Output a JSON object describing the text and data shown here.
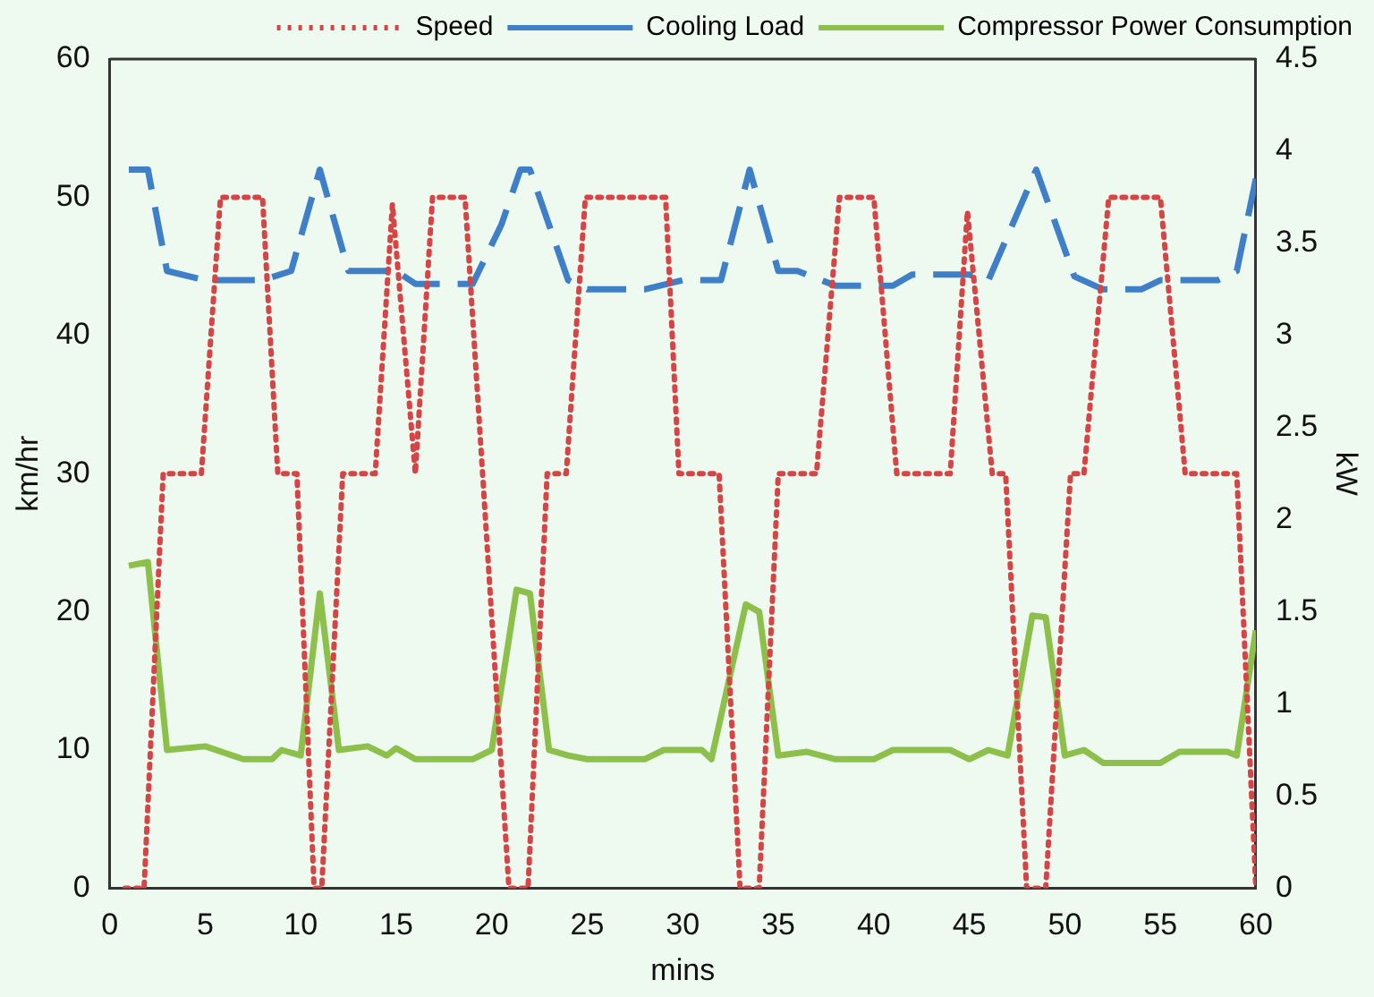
{
  "chart_data": {
    "type": "line",
    "xlabel": "mins",
    "ylabel": "km/hr",
    "y2label": "kW",
    "xlim": [
      0,
      60
    ],
    "xticks": [
      0,
      5,
      10,
      15,
      20,
      25,
      30,
      35,
      40,
      45,
      50,
      55,
      60
    ],
    "ylim": [
      0,
      60
    ],
    "yticks": [
      0,
      10,
      20,
      30,
      40,
      50,
      60
    ],
    "y2lim": [
      0,
      4.5
    ],
    "y2ticks": [
      0,
      0.5,
      1,
      1.5,
      2,
      2.5,
      3,
      3.5,
      4,
      4.5
    ],
    "grid": false,
    "legend": "top",
    "marker": "none",
    "series": [
      {
        "name": "Speed",
        "color": "#d64545",
        "line_style": "dotted",
        "axis": "y",
        "x": [
          0.8,
          1.8,
          2.8,
          4.8,
          5.8,
          8.0,
          8.8,
          9.8,
          10.7,
          11.1,
          12.2,
          13.9,
          14.8,
          16.0,
          16.9,
          18.6,
          20.9,
          21.9,
          22.9,
          23.9,
          24.9,
          29.1,
          29.8,
          30.5,
          31.9,
          33.0,
          34.0,
          35.0,
          37.0,
          38.2,
          40.0,
          41.2,
          44.0,
          44.9,
          46.2,
          46.9,
          48.0,
          49.0,
          50.3,
          51.0,
          52.3,
          55.0,
          56.3,
          59.0,
          60.0
        ],
        "values": [
          0,
          0,
          30,
          30,
          50,
          50,
          30,
          30,
          0,
          0,
          30,
          30,
          49.5,
          30,
          50,
          50,
          0,
          0,
          30,
          30,
          50,
          50,
          30,
          30,
          30,
          0,
          0,
          30,
          30,
          50,
          50,
          30,
          30,
          49,
          30,
          30,
          0,
          0,
          30,
          30,
          50,
          50,
          30,
          30,
          0
        ]
      },
      {
        "name": "Cooling Load",
        "color": "#3f7fc7",
        "line_style": "dashed",
        "axis": "y2",
        "x": [
          1,
          2,
          3,
          5,
          8,
          9.5,
          11,
          12.5,
          14,
          15,
          16,
          19,
          20.5,
          21.5,
          22,
          24,
          25,
          28,
          30,
          32,
          33.5,
          35,
          36,
          38,
          41,
          42,
          45,
          46,
          48.5,
          50.5,
          52,
          54,
          55,
          58,
          59,
          60
        ],
        "values": [
          3.9,
          3.9,
          3.35,
          3.3,
          3.3,
          3.35,
          3.9,
          3.35,
          3.35,
          3.35,
          3.28,
          3.28,
          3.6,
          3.9,
          3.9,
          3.3,
          3.25,
          3.25,
          3.3,
          3.3,
          3.9,
          3.35,
          3.35,
          3.27,
          3.27,
          3.33,
          3.33,
          3.3,
          3.9,
          3.32,
          3.25,
          3.25,
          3.3,
          3.3,
          3.35,
          3.85
        ]
      },
      {
        "name": "Compressor Power Consumption",
        "color": "#8dc04b",
        "line_style": "solid",
        "axis": "y2",
        "x": [
          1,
          2,
          3,
          5,
          7,
          8.5,
          9,
          10,
          11,
          12,
          13.5,
          14.5,
          15,
          16,
          19,
          20,
          21.3,
          22,
          23,
          24,
          25,
          28,
          29,
          31,
          31.5,
          33.3,
          34,
          35,
          36.5,
          38,
          40,
          41,
          44,
          45,
          46,
          47,
          48.3,
          49,
          50,
          51,
          52,
          55,
          56,
          58.5,
          59,
          60
        ],
        "values": [
          1.75,
          1.77,
          0.75,
          0.77,
          0.7,
          0.7,
          0.75,
          0.72,
          1.6,
          0.75,
          0.77,
          0.72,
          0.76,
          0.7,
          0.7,
          0.75,
          1.62,
          1.6,
          0.75,
          0.72,
          0.7,
          0.7,
          0.75,
          0.75,
          0.7,
          1.54,
          1.5,
          0.72,
          0.74,
          0.7,
          0.7,
          0.75,
          0.75,
          0.7,
          0.75,
          0.72,
          1.48,
          1.47,
          0.72,
          0.75,
          0.68,
          0.68,
          0.74,
          0.74,
          0.72,
          1.4
        ]
      }
    ]
  }
}
